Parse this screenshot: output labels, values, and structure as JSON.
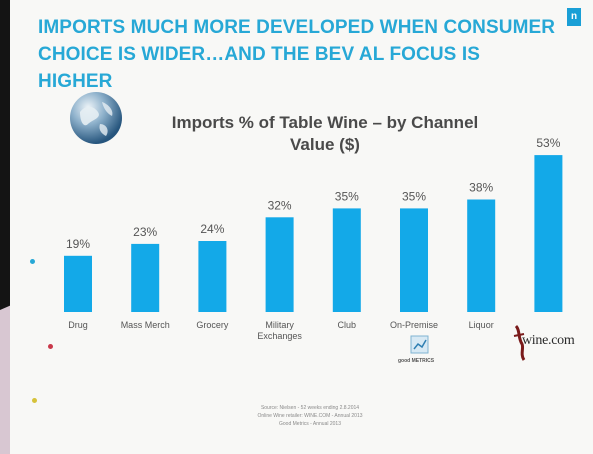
{
  "headline": {
    "line1": "IMPORTS MUCH MORE DEVELOPED WHEN CONSUMER",
    "line2": "CHOICE IS WIDER…AND THE BEV AL FOCUS IS HIGHER"
  },
  "corner_badge": "n",
  "logos": {
    "wine_com": "wine.com",
    "good_metrics": "good METRICS"
  },
  "source_note": [
    "Source: Nielsen - 52 weeks ending 2.8.2014",
    "Online Wine retailer: WINE.COM - Annual 2013",
    "Good Metrics - Annual 2013"
  ],
  "colors": {
    "headline": "#27a8d6",
    "bar": "#13a9e8",
    "title": "#4a4a4a",
    "label": "#555555"
  },
  "chart_data": {
    "type": "bar",
    "title": "Imports % of Table Wine – by Channel",
    "subtitle": "Value ($)",
    "categories": [
      "Drug",
      "Mass Merch",
      "Grocery",
      "Military Exchanges",
      "Club",
      "On-Premise",
      "Liquor",
      "wine.com"
    ],
    "category_labels": [
      [
        "Drug"
      ],
      [
        "Mass Merch"
      ],
      [
        "Grocery"
      ],
      [
        "Military",
        "Exchanges"
      ],
      [
        "Club"
      ],
      [
        "On-Premise"
      ],
      [
        "Liquor"
      ],
      [
        ""
      ]
    ],
    "values": [
      19,
      23,
      24,
      32,
      35,
      35,
      38,
      53
    ],
    "value_labels": [
      "19%",
      "23%",
      "24%",
      "32%",
      "35%",
      "35%",
      "38%",
      "53%"
    ],
    "ylim": [
      0,
      60
    ],
    "xlabel": "",
    "ylabel": "",
    "grid": false,
    "legend": "none"
  }
}
